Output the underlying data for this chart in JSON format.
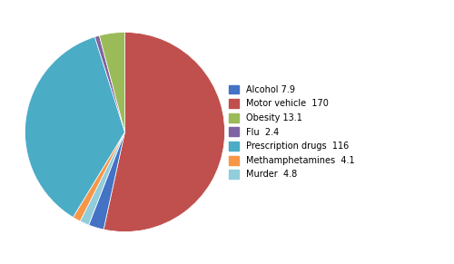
{
  "labels": [
    "Motor vehicle  170",
    "Alcohol 7.9",
    "Murder  4.8",
    "Methamphetamines  4.1",
    "Prescription drugs  116",
    "Flu  2.4",
    "Obesity 13.1"
  ],
  "values": [
    170,
    7.9,
    4.8,
    4.1,
    116,
    2.4,
    13.1
  ],
  "colors": [
    "#C0504D",
    "#4472C4",
    "#92CDDC",
    "#F79646",
    "#4BACC6",
    "#8064A2",
    "#9BBB59"
  ],
  "legend_labels": [
    "Alcohol 7.9",
    "Motor vehicle  170",
    "Obesity 13.1",
    "Flu  2.4",
    "Prescription drugs  116",
    "Methamphetamines  4.1",
    "Murder  4.8"
  ],
  "legend_colors": [
    "#4472C4",
    "#C0504D",
    "#9BBB59",
    "#8064A2",
    "#4BACC6",
    "#F79646",
    "#92CDDC"
  ],
  "figsize": [
    5.0,
    2.91
  ],
  "dpi": 100,
  "background_color": "#FFFFFF",
  "startangle": 90
}
